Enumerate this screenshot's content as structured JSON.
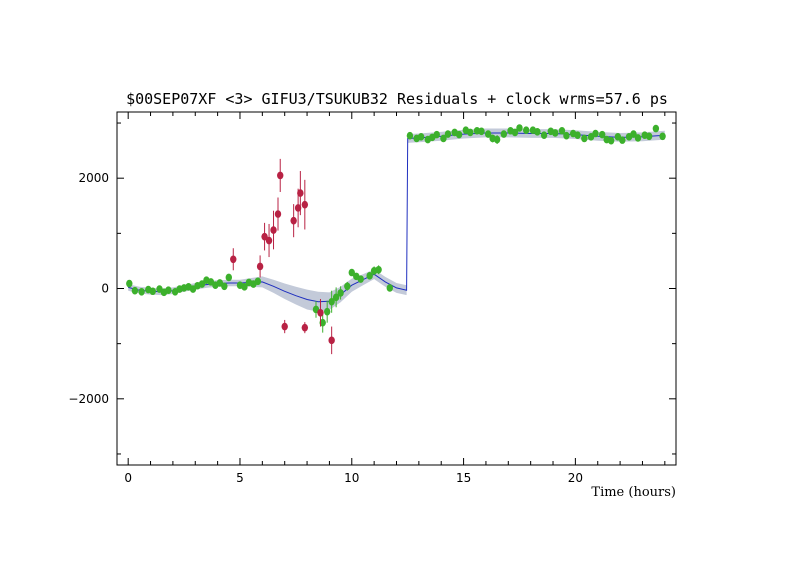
{
  "chart_data": {
    "type": "scatter",
    "title": "$00SEP07XF <3> GIFU3/TSUKUB32 Residuals + clock wrms=57.6  ps",
    "xlabel": "Time (hours)",
    "ylabel": "",
    "xlim": [
      -0.5,
      24.5
    ],
    "ylim": [
      -3200,
      3200
    ],
    "x_ticks": [
      0,
      5,
      10,
      15,
      20
    ],
    "y_ticks": [
      -2000,
      0,
      2000
    ],
    "grid": false,
    "colors": {
      "used": "#3cb02c",
      "rejected": "#b82244",
      "clock_model": "#1f2fbf",
      "uncertainty_band": "#c3cad9"
    },
    "series": [
      {
        "key": "used",
        "points": [
          [
            0.05,
            90,
            20
          ],
          [
            0.3,
            -40,
            25
          ],
          [
            0.6,
            -60,
            20
          ],
          [
            0.9,
            -20,
            20
          ],
          [
            1.1,
            -50,
            25
          ],
          [
            1.4,
            -10,
            20
          ],
          [
            1.6,
            -70,
            30
          ],
          [
            1.8,
            -30,
            20
          ],
          [
            2.1,
            -60,
            25
          ],
          [
            2.3,
            -10,
            20
          ],
          [
            2.5,
            10,
            20
          ],
          [
            2.7,
            30,
            20
          ],
          [
            2.9,
            -10,
            25
          ],
          [
            3.1,
            50,
            20
          ],
          [
            3.3,
            80,
            30
          ],
          [
            3.5,
            150,
            40
          ],
          [
            3.7,
            120,
            30
          ],
          [
            3.9,
            60,
            25
          ],
          [
            4.1,
            100,
            30
          ],
          [
            4.3,
            40,
            25
          ],
          [
            4.5,
            200,
            40
          ],
          [
            5.0,
            60,
            30
          ],
          [
            5.2,
            30,
            25
          ],
          [
            5.4,
            110,
            40
          ],
          [
            5.6,
            80,
            30
          ],
          [
            5.8,
            130,
            40
          ],
          [
            8.4,
            -380,
            150
          ],
          [
            8.7,
            -620,
            180
          ],
          [
            8.9,
            -420,
            200
          ],
          [
            9.1,
            -240,
            200
          ],
          [
            9.3,
            -160,
            180
          ],
          [
            9.5,
            -80,
            120
          ],
          [
            9.8,
            40,
            80
          ],
          [
            10.0,
            290,
            60
          ],
          [
            10.2,
            220,
            60
          ],
          [
            10.4,
            170,
            50
          ],
          [
            10.8,
            230,
            60
          ],
          [
            11.0,
            320,
            80
          ],
          [
            11.2,
            340,
            80
          ],
          [
            11.7,
            10,
            30
          ],
          [
            12.6,
            2770,
            60
          ],
          [
            12.9,
            2720,
            60
          ],
          [
            13.1,
            2750,
            50
          ],
          [
            13.4,
            2700,
            50
          ],
          [
            13.6,
            2740,
            50
          ],
          [
            13.8,
            2790,
            50
          ],
          [
            14.1,
            2720,
            60
          ],
          [
            14.3,
            2800,
            60
          ],
          [
            14.6,
            2830,
            60
          ],
          [
            14.8,
            2790,
            50
          ],
          [
            15.1,
            2870,
            60
          ],
          [
            15.3,
            2830,
            60
          ],
          [
            15.6,
            2860,
            60
          ],
          [
            15.8,
            2850,
            60
          ],
          [
            16.1,
            2800,
            60
          ],
          [
            16.3,
            2720,
            70
          ],
          [
            16.5,
            2700,
            80
          ],
          [
            16.8,
            2800,
            60
          ],
          [
            17.1,
            2860,
            60
          ],
          [
            17.3,
            2830,
            60
          ],
          [
            17.5,
            2910,
            60
          ],
          [
            17.8,
            2870,
            60
          ],
          [
            18.1,
            2870,
            60
          ],
          [
            18.3,
            2840,
            60
          ],
          [
            18.6,
            2780,
            60
          ],
          [
            18.9,
            2850,
            60
          ],
          [
            19.1,
            2820,
            60
          ],
          [
            19.4,
            2860,
            60
          ],
          [
            19.6,
            2770,
            60
          ],
          [
            19.9,
            2810,
            60
          ],
          [
            20.1,
            2780,
            60
          ],
          [
            20.4,
            2720,
            60
          ],
          [
            20.7,
            2750,
            60
          ],
          [
            20.9,
            2810,
            60
          ],
          [
            21.2,
            2790,
            60
          ],
          [
            21.4,
            2700,
            60
          ],
          [
            21.6,
            2680,
            60
          ],
          [
            21.9,
            2750,
            60
          ],
          [
            22.1,
            2690,
            60
          ],
          [
            22.4,
            2750,
            60
          ],
          [
            22.6,
            2800,
            60
          ],
          [
            22.8,
            2730,
            60
          ],
          [
            23.1,
            2780,
            60
          ],
          [
            23.3,
            2760,
            60
          ],
          [
            23.6,
            2900,
            60
          ],
          [
            23.9,
            2760,
            60
          ]
        ]
      },
      {
        "key": "rejected",
        "points": [
          [
            4.7,
            530,
            200
          ],
          [
            5.9,
            400,
            200
          ],
          [
            6.1,
            940,
            250
          ],
          [
            6.3,
            870,
            300
          ],
          [
            6.5,
            1060,
            350
          ],
          [
            6.7,
            1350,
            300
          ],
          [
            6.8,
            2050,
            300
          ],
          [
            7.0,
            -690,
            120
          ],
          [
            7.4,
            1230,
            300
          ],
          [
            7.6,
            1460,
            350
          ],
          [
            7.7,
            1730,
            400
          ],
          [
            7.9,
            1520,
            450
          ],
          [
            7.9,
            -710,
            100
          ],
          [
            8.6,
            -440,
            250
          ],
          [
            9.1,
            -940,
            250
          ]
        ]
      }
    ],
    "clock_model": {
      "points": [
        [
          0.0,
          20
        ],
        [
          0.5,
          -30
        ],
        [
          1.0,
          -50
        ],
        [
          1.5,
          -60
        ],
        [
          2.0,
          -40
        ],
        [
          2.5,
          0
        ],
        [
          3.0,
          40
        ],
        [
          3.5,
          70
        ],
        [
          4.0,
          90
        ],
        [
          4.5,
          100
        ],
        [
          5.0,
          100
        ],
        [
          5.5,
          110
        ],
        [
          6.0,
          120
        ],
        [
          6.5,
          40
        ],
        [
          7.0,
          -50
        ],
        [
          7.5,
          -130
        ],
        [
          8.0,
          -200
        ],
        [
          8.5,
          -240
        ],
        [
          9.0,
          -230
        ],
        [
          9.5,
          -110
        ],
        [
          10.0,
          60
        ],
        [
          10.5,
          160
        ],
        [
          11.0,
          260
        ],
        [
          11.5,
          120
        ],
        [
          12.0,
          10
        ],
        [
          12.45,
          -30
        ],
        [
          12.5,
          2720
        ],
        [
          13.0,
          2730
        ],
        [
          14.0,
          2760
        ],
        [
          15.0,
          2800
        ],
        [
          16.0,
          2820
        ],
        [
          17.0,
          2820
        ],
        [
          18.0,
          2810
        ],
        [
          19.0,
          2810
        ],
        [
          20.0,
          2790
        ],
        [
          21.0,
          2760
        ],
        [
          22.0,
          2740
        ],
        [
          23.0,
          2750
        ],
        [
          24.0,
          2780
        ]
      ],
      "band_halfwidth": [
        60,
        60,
        60,
        60,
        60,
        60,
        60,
        60,
        60,
        60,
        60,
        80,
        100,
        120,
        140,
        160,
        180,
        180,
        160,
        140,
        120,
        100,
        90,
        90,
        90,
        90,
        80,
        80,
        80,
        80,
        80,
        80,
        80,
        80,
        80,
        80,
        80,
        80,
        80
      ]
    }
  }
}
